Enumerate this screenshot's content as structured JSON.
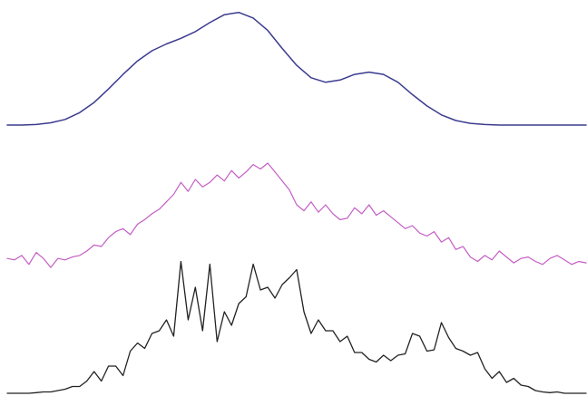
{
  "chart_data": {
    "type": "line",
    "xlim": [
      0,
      160
    ],
    "grid": false,
    "legend": "none",
    "series": [
      {
        "color": "#3b3b8f",
        "stroke_width": 1.5,
        "ylim": [
          0,
          1.03
        ],
        "x": [
          0,
          4,
          8,
          12,
          16,
          20,
          24,
          28,
          32,
          36,
          40,
          44,
          48,
          52,
          56,
          60,
          64,
          68,
          72,
          76,
          80,
          84,
          88,
          92,
          96,
          100,
          104,
          108,
          112,
          116,
          120,
          124,
          128,
          132,
          136,
          140,
          144,
          148,
          152,
          156,
          160
        ],
        "values": [
          0,
          0,
          0.005,
          0.02,
          0.05,
          0.11,
          0.2,
          0.32,
          0.45,
          0.57,
          0.66,
          0.72,
          0.77,
          0.83,
          0.91,
          0.98,
          1.0,
          0.95,
          0.84,
          0.68,
          0.53,
          0.42,
          0.38,
          0.4,
          0.45,
          0.47,
          0.45,
          0.38,
          0.27,
          0.17,
          0.09,
          0.04,
          0.015,
          0.005,
          0,
          0,
          0,
          0,
          0,
          0,
          0
        ]
      },
      {
        "color": "#c45ec4",
        "stroke_width": 1.2,
        "ylim": [
          -0.05,
          0.85
        ],
        "x": [
          0,
          2,
          4,
          6,
          8,
          10,
          12,
          14,
          16,
          18,
          20,
          22,
          24,
          26,
          28,
          30,
          32,
          34,
          36,
          38,
          40,
          42,
          44,
          46,
          48,
          50,
          52,
          54,
          56,
          58,
          60,
          62,
          64,
          66,
          68,
          70,
          72,
          74,
          76,
          78,
          80,
          82,
          84,
          86,
          88,
          90,
          92,
          94,
          96,
          98,
          100,
          102,
          104,
          106,
          108,
          110,
          112,
          114,
          116,
          118,
          120,
          122,
          124,
          126,
          128,
          130,
          132,
          134,
          136,
          138,
          140,
          142,
          144,
          146,
          148,
          150,
          152,
          154,
          156,
          158,
          160
        ],
        "values": [
          0.04,
          0.03,
          0.06,
          0.0,
          0.08,
          0.04,
          -0.02,
          0.04,
          0.03,
          0.05,
          0.06,
          0.09,
          0.13,
          0.12,
          0.18,
          0.22,
          0.24,
          0.2,
          0.27,
          0.3,
          0.34,
          0.37,
          0.42,
          0.47,
          0.55,
          0.49,
          0.57,
          0.52,
          0.55,
          0.6,
          0.56,
          0.63,
          0.58,
          0.62,
          0.67,
          0.64,
          0.68,
          0.62,
          0.56,
          0.5,
          0.4,
          0.36,
          0.42,
          0.35,
          0.4,
          0.34,
          0.3,
          0.31,
          0.38,
          0.34,
          0.4,
          0.33,
          0.36,
          0.32,
          0.28,
          0.24,
          0.26,
          0.21,
          0.19,
          0.22,
          0.15,
          0.18,
          0.1,
          0.12,
          0.05,
          0.02,
          0.06,
          0.03,
          0.09,
          0.05,
          0.01,
          0.04,
          0.05,
          0.02,
          0.0,
          0.04,
          0.06,
          0.03,
          0.0,
          0.02,
          0.01
        ]
      },
      {
        "color": "#222222",
        "stroke_width": 1.3,
        "ylim": [
          0,
          1.0
        ],
        "x": [
          0,
          2,
          4,
          6,
          8,
          10,
          12,
          14,
          16,
          18,
          20,
          22,
          24,
          26,
          28,
          30,
          32,
          34,
          36,
          38,
          40,
          42,
          44,
          46,
          48,
          50,
          52,
          54,
          56,
          58,
          60,
          62,
          64,
          66,
          68,
          70,
          72,
          74,
          76,
          78,
          80,
          82,
          84,
          86,
          88,
          90,
          92,
          94,
          96,
          98,
          100,
          102,
          104,
          106,
          108,
          110,
          112,
          114,
          116,
          118,
          120,
          122,
          124,
          126,
          128,
          130,
          132,
          134,
          136,
          138,
          140,
          142,
          144,
          146,
          148,
          150,
          152,
          154,
          156,
          158,
          160
        ],
        "values": [
          0,
          0,
          0,
          0,
          0.005,
          0.01,
          0.01,
          0.02,
          0.03,
          0.05,
          0.05,
          0.09,
          0.16,
          0.09,
          0.2,
          0.2,
          0.13,
          0.31,
          0.37,
          0.33,
          0.44,
          0.46,
          0.54,
          0.42,
          0.97,
          0.54,
          0.78,
          0.46,
          0.95,
          0.38,
          0.6,
          0.5,
          0.66,
          0.71,
          0.95,
          0.76,
          0.78,
          0.7,
          0.8,
          0.85,
          0.91,
          0.6,
          0.44,
          0.54,
          0.46,
          0.46,
          0.38,
          0.42,
          0.3,
          0.3,
          0.25,
          0.23,
          0.28,
          0.24,
          0.28,
          0.29,
          0.44,
          0.42,
          0.31,
          0.32,
          0.52,
          0.41,
          0.33,
          0.31,
          0.28,
          0.3,
          0.18,
          0.11,
          0.16,
          0.08,
          0.11,
          0.06,
          0.05,
          0.02,
          0.01,
          0.005,
          0.01,
          0,
          0,
          0,
          0
        ]
      }
    ]
  }
}
